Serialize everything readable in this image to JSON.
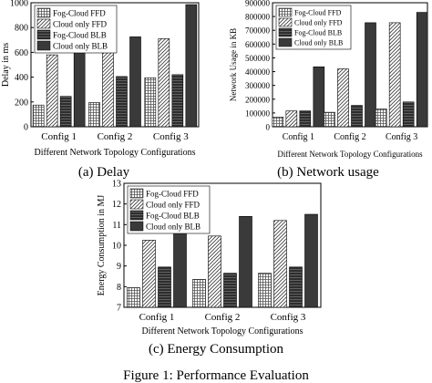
{
  "figure": {
    "caption": "Figure 1: Performance Evaluation"
  },
  "chart_data": [
    {
      "type": "bar",
      "caption": "(a) Delay",
      "title": "",
      "xlabel": "Different Network Topology Configurations",
      "ylabel": "Delay in ms",
      "categories": [
        "Config 1",
        "Config 2",
        "Config 3"
      ],
      "ylim": [
        0,
        1000
      ],
      "yticks": [
        "0",
        "200",
        "400",
        "600",
        "800",
        "1000"
      ],
      "grid": false,
      "legend_position": "top-left",
      "series": [
        {
          "name": "Fog-Cloud FFD",
          "values": [
            175,
            195,
            395
          ]
        },
        {
          "name": "Cloud only FFD",
          "values": [
            580,
            690,
            710
          ]
        },
        {
          "name": "Fog-Cloud BLB",
          "values": [
            245,
            405,
            420
          ]
        },
        {
          "name": "Cloud only BLB",
          "values": [
            720,
            725,
            985
          ]
        }
      ]
    },
    {
      "type": "bar",
      "caption": "(b) Network usage",
      "title": "",
      "xlabel": "Different Network Topology Configurations",
      "ylabel": "Network Usage in KB",
      "categories": [
        "Config 1",
        "Config 2",
        "Config 3"
      ],
      "ylim": [
        0,
        900000
      ],
      "yticks": [
        "0",
        "100000",
        "200000",
        "300000",
        "400000",
        "500000",
        "600000",
        "700000",
        "800000",
        "900000"
      ],
      "grid": false,
      "legend_position": "top-left",
      "series": [
        {
          "name": "Fog-Cloud FFD",
          "values": [
            70000,
            105000,
            130000
          ]
        },
        {
          "name": "Cloud only FFD",
          "values": [
            115000,
            420000,
            755000
          ]
        },
        {
          "name": "Fog-Cloud BLB",
          "values": [
            115000,
            155000,
            180000
          ]
        },
        {
          "name": "Cloud only BLB",
          "values": [
            435000,
            755000,
            830000
          ]
        }
      ]
    },
    {
      "type": "bar",
      "caption": "(c) Energy Consumption",
      "title": "",
      "xlabel": "Different Network Topology Configurations",
      "ylabel": "Energy Consumption in MJ",
      "categories": [
        "Config 1",
        "Config 2",
        "Config 3"
      ],
      "ylim": [
        7,
        13
      ],
      "yticks": [
        "7",
        "8",
        "9",
        "10",
        "11",
        "12",
        "13"
      ],
      "grid": false,
      "legend_position": "top-left",
      "series": [
        {
          "name": "Fog-Cloud FFD",
          "values": [
            7.95,
            8.35,
            8.65
          ]
        },
        {
          "name": "Cloud only FFD",
          "values": [
            10.25,
            10.45,
            11.2
          ]
        },
        {
          "name": "Fog-Cloud BLB",
          "values": [
            8.95,
            8.65,
            8.95
          ]
        },
        {
          "name": "Cloud only BLB",
          "values": [
            11.35,
            11.4,
            11.5
          ]
        }
      ]
    }
  ]
}
